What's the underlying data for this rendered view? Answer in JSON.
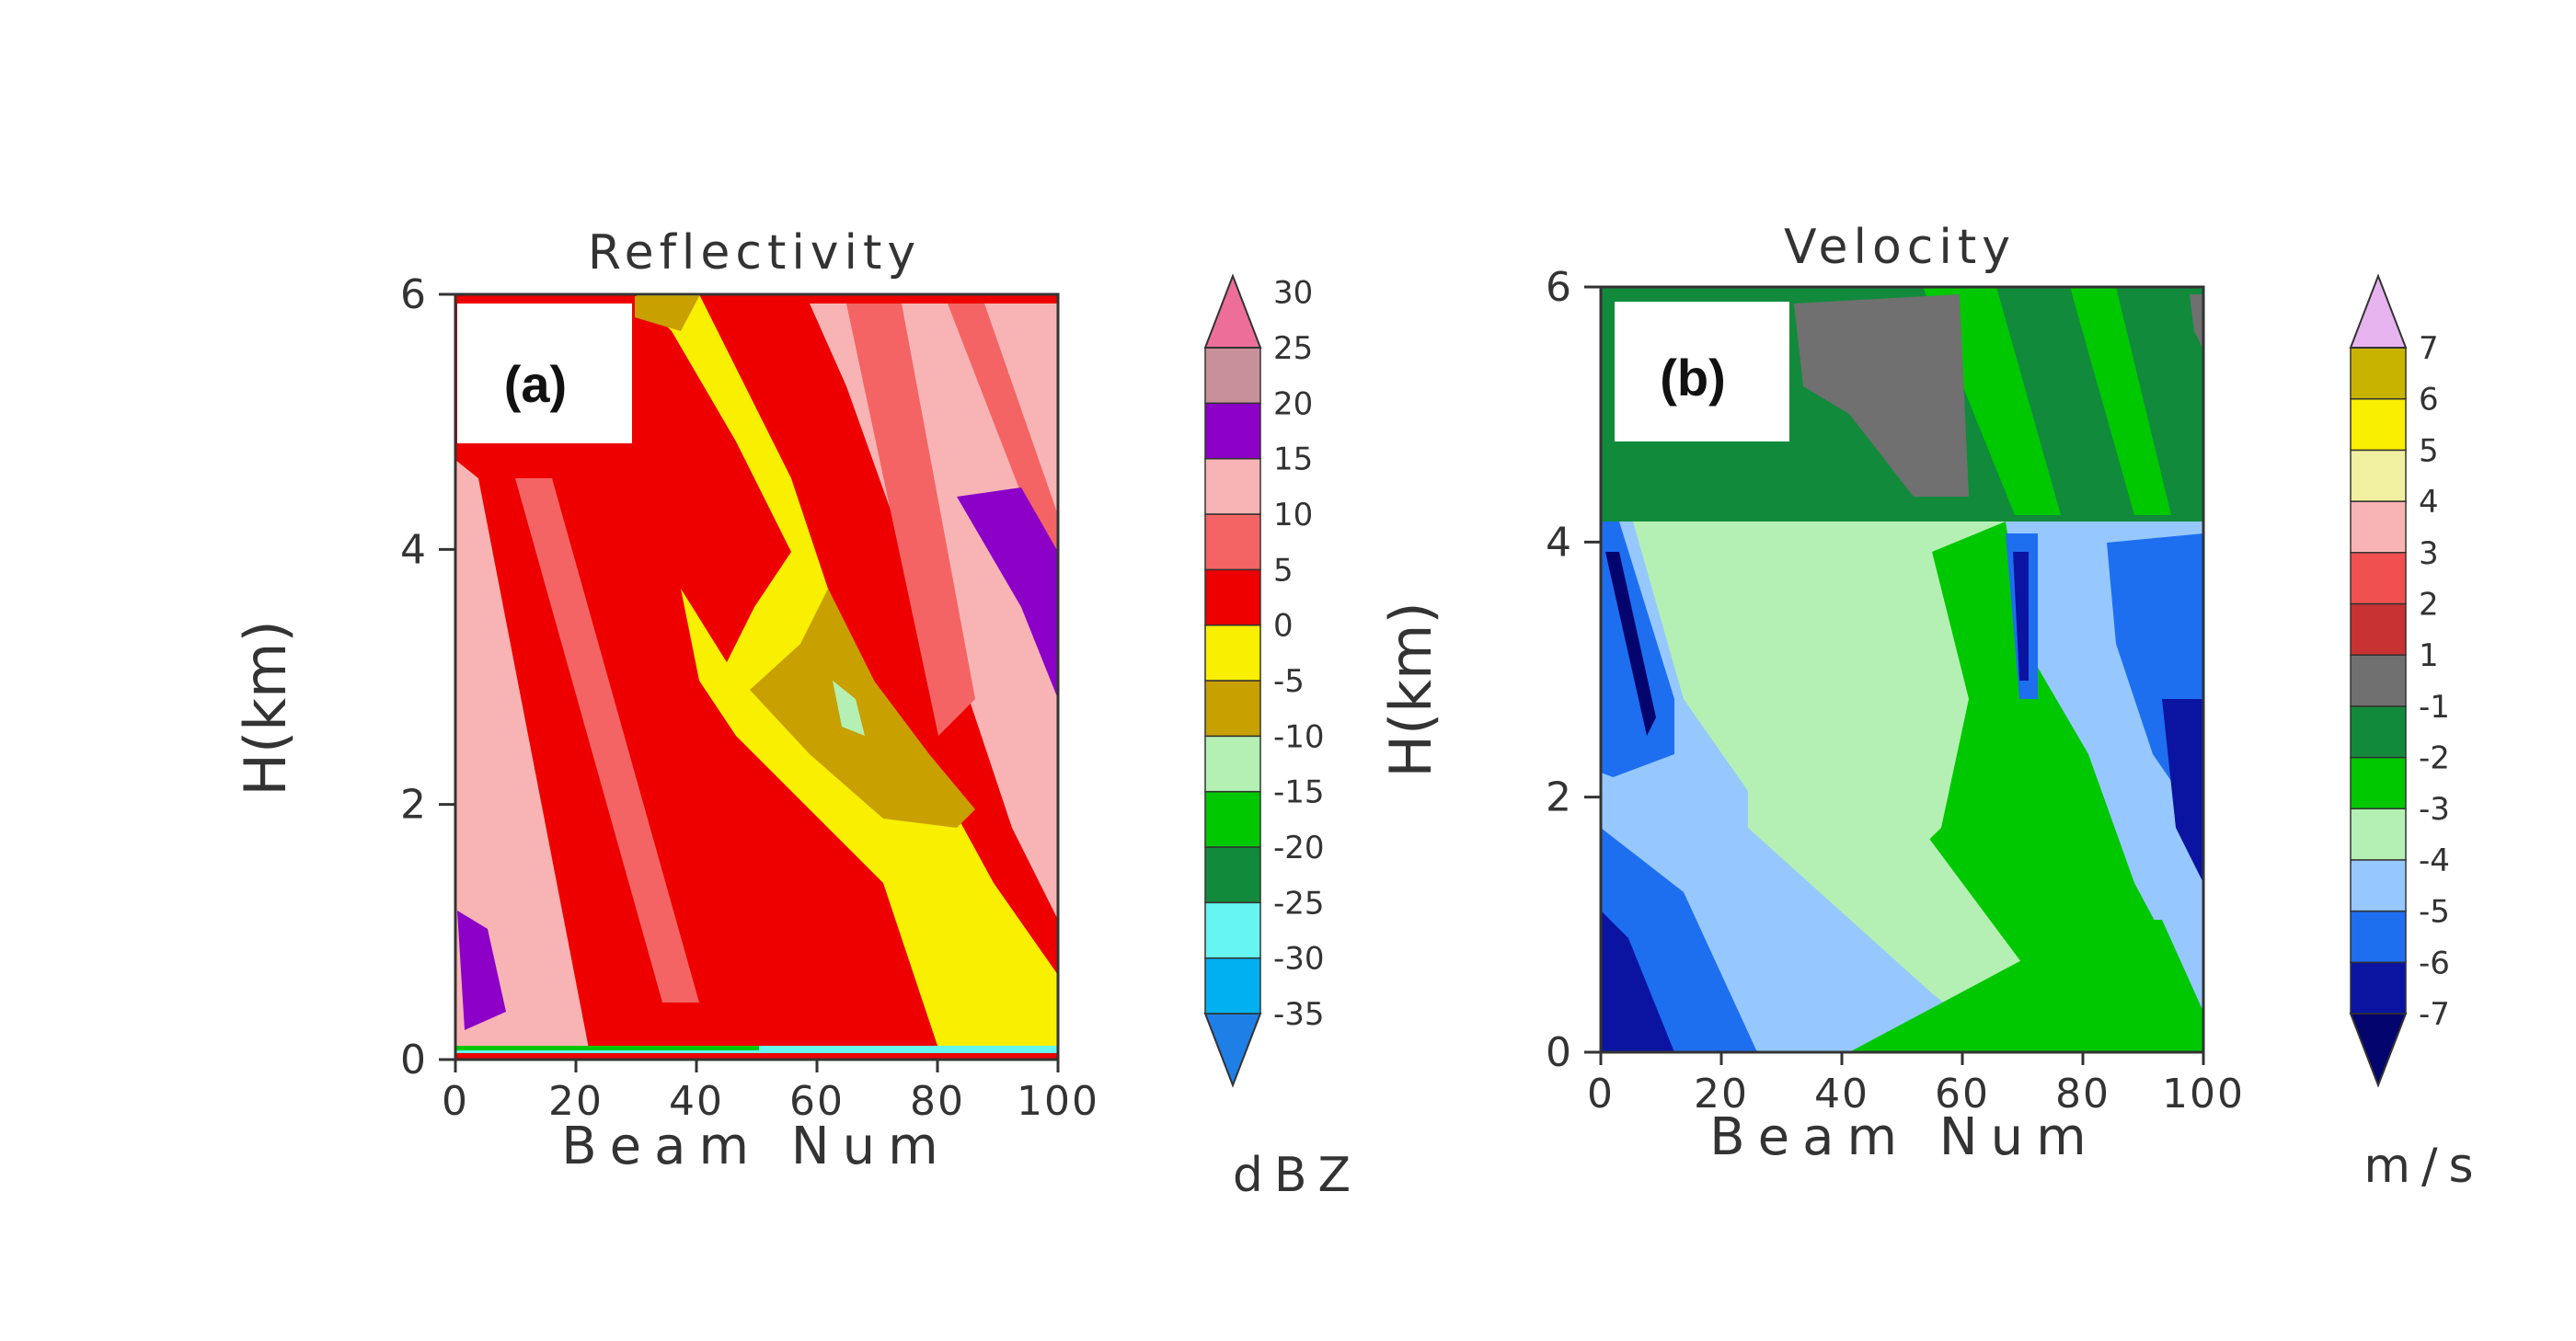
{
  "chart_data": [
    {
      "type": "heatmap",
      "title": "Reflectivity",
      "panel_label": "(a)",
      "xlabel": "Beam Num",
      "ylabel": "H(km)",
      "xlim": [
        0,
        100
      ],
      "ylim": [
        0,
        6
      ],
      "xticks": [
        "0",
        "20",
        "40",
        "60",
        "80",
        "100"
      ],
      "yticks": [
        "0",
        "2",
        "4",
        "6"
      ],
      "colorbar": {
        "unit": "dBZ",
        "levels": [
          "-35",
          "-30",
          "-25",
          "-20",
          "-15",
          "-10",
          "-5",
          "0",
          "5",
          "10",
          "15",
          "20",
          "25",
          "30"
        ],
        "colors": [
          "#1e7fe6",
          "#00b0f0",
          "#66f5f0",
          "#128a3c",
          "#00c800",
          "#b4f0b4",
          "#c8a000",
          "#f8f000",
          "#ee0000",
          "#f46464",
          "#f8b4b4",
          "#8c00c8",
          "#c8909a",
          "#ee6e9a"
        ]
      }
    },
    {
      "type": "heatmap",
      "title": "Velocity",
      "panel_label": "(b)",
      "xlabel": "Beam Num",
      "ylabel": "H(km)",
      "xlim": [
        0,
        100
      ],
      "ylim": [
        0,
        6
      ],
      "xticks": [
        "0",
        "20",
        "40",
        "60",
        "80",
        "100"
      ],
      "yticks": [
        "0",
        "2",
        "4",
        "6"
      ],
      "colorbar": {
        "unit": "m/s",
        "levels": [
          "-7",
          "-6",
          "-5",
          "-4",
          "-3",
          "-2",
          "-1",
          "1",
          "2",
          "3",
          "4",
          "5",
          "6",
          "7"
        ],
        "colors": [
          "#04046e",
          "#0a14a0",
          "#1e6ef0",
          "#96c8ff",
          "#b4f0b4",
          "#00c800",
          "#128a3c",
          "#707070",
          "#c83232",
          "#f05050",
          "#f8b4b4",
          "#f0f0a0",
          "#f8f000",
          "#c8b400",
          "#e8b4f0"
        ]
      }
    }
  ]
}
